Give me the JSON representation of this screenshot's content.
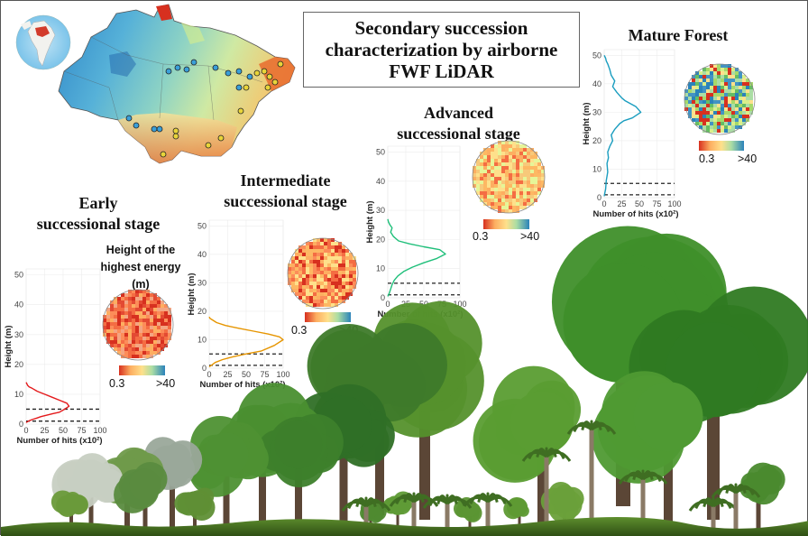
{
  "title": {
    "line1": "Secondary succession",
    "line2": "characterization by airborne",
    "line3": "FWF LiDAR"
  },
  "stages": [
    {
      "id": "early",
      "label_line1": "Early",
      "label_line2": "successional stage"
    },
    {
      "id": "intermediate",
      "label_line1": "Intermediate",
      "label_line2": "successional stage"
    },
    {
      "id": "advanced",
      "label_line1": "Advanced",
      "label_line2": "successional stage"
    },
    {
      "id": "mature",
      "label_line1": "Mature Forest",
      "label_line2": ""
    }
  ],
  "legend": {
    "title_line1": "Height of the",
    "title_line2": "highest energy",
    "title_line3": "(m)",
    "min_label": "0.3",
    "max_label": ">40",
    "colors": [
      "#d7301f",
      "#f46d43",
      "#fdae61",
      "#fee08b",
      "#d9ef8b",
      "#66bd63",
      "#1a9850",
      "#4393c3",
      "#2166ac"
    ]
  },
  "chart_data": [
    {
      "type": "line",
      "name_key": "early",
      "xlabel": "Number of hits (x10²)",
      "ylabel": "Height (m)",
      "xlim": [
        0,
        100
      ],
      "ylim": [
        0,
        52
      ],
      "xticks": [
        0,
        25,
        50,
        75,
        100
      ],
      "yticks": [
        0,
        10,
        20,
        30,
        40,
        50
      ],
      "color": "#e41a1c",
      "x": [
        0,
        3,
        8,
        14,
        20,
        28,
        36,
        45,
        52,
        58,
        55,
        45,
        35,
        25,
        15,
        8,
        4,
        2,
        1,
        0
      ],
      "y": [
        0.5,
        1,
        1.5,
        2,
        2.5,
        3,
        3.5,
        4,
        5,
        6,
        7,
        8,
        9,
        10,
        11,
        12,
        12.5,
        13,
        13.5,
        14
      ],
      "reference_lines": [
        1,
        5
      ]
    },
    {
      "type": "line",
      "name_key": "intermediate",
      "xlabel": "Number of hits (x10²)",
      "ylabel": "Height (m)",
      "xlim": [
        0,
        100
      ],
      "ylim": [
        0,
        52
      ],
      "xticks": [
        0,
        25,
        50,
        75,
        100
      ],
      "yticks": [
        0,
        10,
        20,
        30,
        40,
        50
      ],
      "color": "#e69500",
      "x": [
        0,
        3,
        8,
        18,
        32,
        50,
        70,
        88,
        100,
        95,
        80,
        60,
        40,
        22,
        10,
        4,
        1,
        0
      ],
      "y": [
        0.5,
        1,
        2,
        3,
        4,
        5,
        6,
        8,
        10,
        11,
        12,
        13,
        14,
        15,
        16,
        17,
        17.5,
        18
      ],
      "reference_lines": [
        1,
        5
      ]
    },
    {
      "type": "line",
      "name_key": "advanced",
      "xlabel": "Number of hits (x10²)",
      "ylabel": "Height (m)",
      "xlim": [
        0,
        100
      ],
      "ylim": [
        0,
        52
      ],
      "xticks": [
        0,
        25,
        50,
        75,
        100
      ],
      "yticks": [
        0,
        10,
        20,
        30,
        40,
        50
      ],
      "color": "#1fbf7a",
      "x": [
        0,
        2,
        4,
        6,
        9,
        14,
        22,
        34,
        50,
        68,
        80,
        72,
        50,
        30,
        15,
        8,
        4,
        6,
        3,
        1,
        0
      ],
      "y": [
        0.5,
        1.5,
        3,
        4.5,
        6,
        7.5,
        9,
        10.5,
        12,
        13.5,
        15,
        16.5,
        17.5,
        18.5,
        19.5,
        21,
        22.5,
        24,
        25,
        26,
        27
      ],
      "reference_lines": [
        1,
        5
      ]
    },
    {
      "type": "line",
      "name_key": "mature",
      "xlabel": "Number of hits (x10²)",
      "ylabel": "Height (m)",
      "xlim": [
        0,
        100
      ],
      "ylim": [
        0,
        52
      ],
      "xticks": [
        0,
        25,
        50,
        75,
        100
      ],
      "yticks": [
        0,
        10,
        20,
        30,
        40,
        50
      ],
      "color": "#1a9dbf",
      "x": [
        0,
        2,
        3,
        5,
        4,
        6,
        5,
        8,
        12,
        10,
        15,
        22,
        28,
        40,
        52,
        45,
        30,
        25,
        18,
        12,
        15,
        10,
        8,
        5,
        3,
        2,
        0
      ],
      "y": [
        0.5,
        3,
        6,
        9,
        12,
        14,
        16,
        18,
        20,
        22,
        24,
        26,
        27,
        28,
        30,
        32,
        34,
        35,
        37,
        39,
        41,
        43,
        45,
        47,
        48,
        49,
        50
      ],
      "reference_lines": [
        1,
        5
      ]
    }
  ]
}
